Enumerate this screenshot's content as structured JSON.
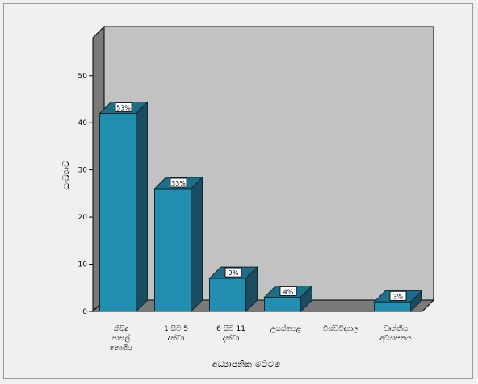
{
  "chart_data": {
    "type": "bar",
    "xlabel": "අධ්‍යාපනික මට්ටම",
    "ylabel": "සංඛ්‍යාව",
    "categories": [
      [
        "කිසිදු",
        "පාසල්",
        "නොගිය"
      ],
      [
        "1 සිට 5",
        "දක්වා"
      ],
      [
        "6 සිට 11",
        "දක්වා"
      ],
      [
        "උසස්පෙළ"
      ],
      [
        "විශ්වවිද්‍යාල"
      ],
      [
        "වෘත්තීය",
        "අධ්‍යාපනය"
      ]
    ],
    "values": [
      42,
      26,
      7,
      3,
      0,
      2
    ],
    "data_labels": [
      "53%",
      "33%",
      "9%",
      "4%",
      "",
      "3%"
    ],
    "ylim": [
      0,
      58
    ],
    "yticks": [
      0,
      10,
      20,
      30,
      40,
      50
    ],
    "grid": false,
    "colors": {
      "bar_front": "#228fb0",
      "bar_top": "#1f6d87",
      "bar_side": "#1a4b5e",
      "bar_stroke": "#0b2a36",
      "back_wall": "#c2c2c2",
      "left_wall": "#7a7a7a",
      "floor": "#7a7a7a"
    }
  }
}
